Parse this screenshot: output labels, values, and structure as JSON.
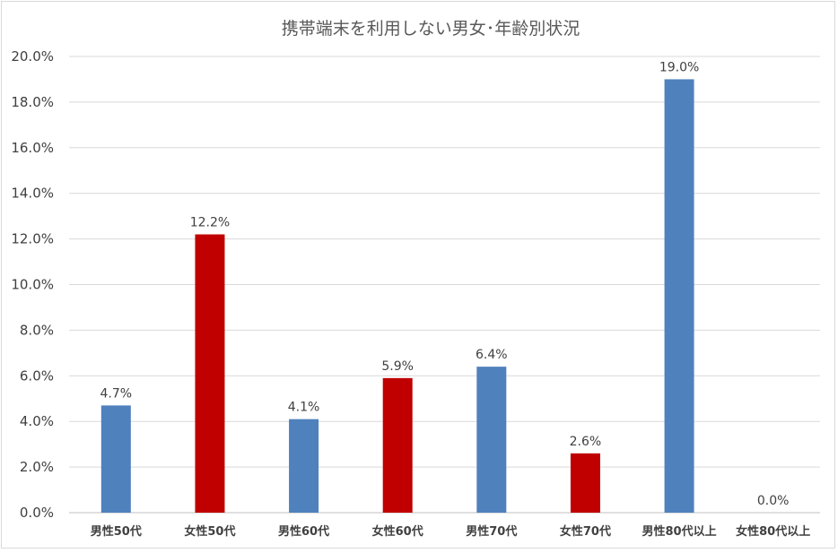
{
  "chart_data": {
    "type": "bar",
    "title": "携帯端末を利用しない男女･年齢別状況",
    "categories": [
      "男性50代",
      "女性50代",
      "男性60代",
      "女性60代",
      "男性70代",
      "女性70代",
      "男性80代以上",
      "女性80代以上"
    ],
    "values": [
      4.7,
      12.2,
      4.1,
      5.9,
      6.4,
      2.6,
      19.0,
      0.0
    ],
    "data_labels": [
      "4.7%",
      "12.2%",
      "4.1%",
      "5.9%",
      "6.4%",
      "2.6%",
      "19.0%",
      "0.0%"
    ],
    "bar_colors": [
      "#4f81bd",
      "#c00000",
      "#4f81bd",
      "#c00000",
      "#4f81bd",
      "#c00000",
      "#4f81bd",
      "#c00000"
    ],
    "y_ticks": [
      "0.0%",
      "2.0%",
      "4.0%",
      "6.0%",
      "8.0%",
      "10.0%",
      "12.0%",
      "14.0%",
      "16.0%",
      "18.0%",
      "20.0%"
    ],
    "ylim": [
      0,
      20
    ],
    "xlabel": "",
    "ylabel": "",
    "grid": true,
    "legend": "none"
  }
}
